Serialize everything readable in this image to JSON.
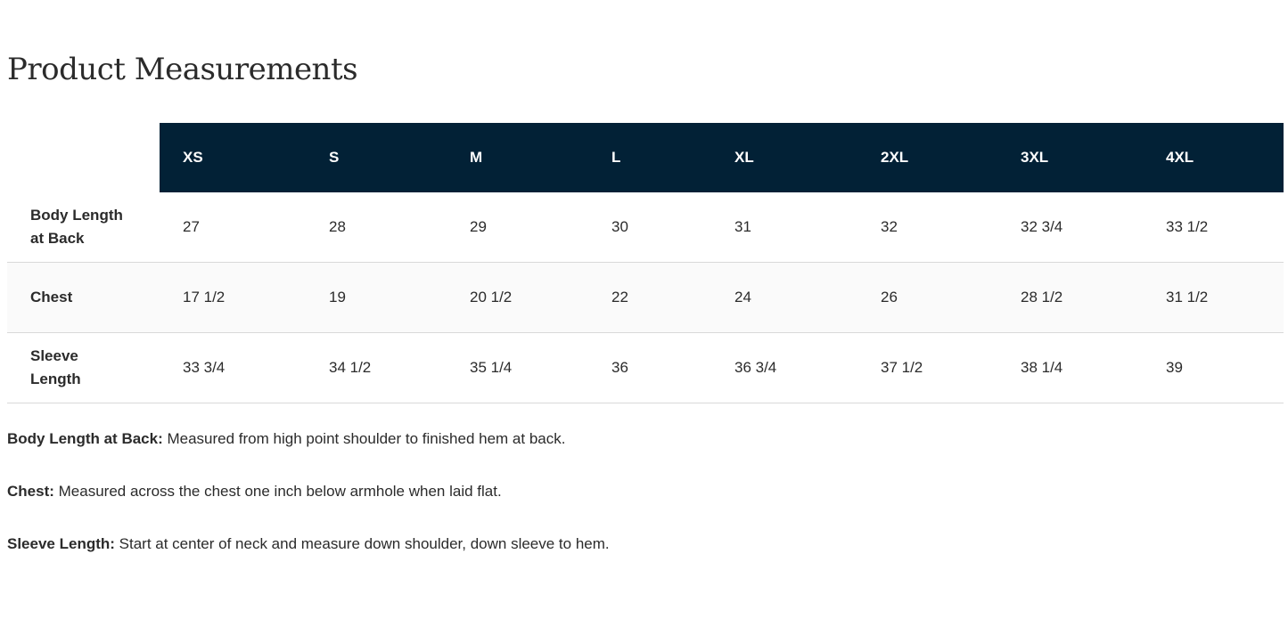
{
  "title": "Product Measurements",
  "sizes": [
    "XS",
    "S",
    "M",
    "L",
    "XL",
    "2XL",
    "3XL",
    "4XL"
  ],
  "rows": [
    {
      "label": "Body Length at Back",
      "values": [
        "27",
        "28",
        "29",
        "30",
        "31",
        "32",
        "32 3/4",
        "33 1/2"
      ]
    },
    {
      "label": "Chest",
      "values": [
        "17 1/2",
        "19",
        "20 1/2",
        "22",
        "24",
        "26",
        "28 1/2",
        "31 1/2"
      ]
    },
    {
      "label": "Sleeve Length",
      "values": [
        "33 3/4",
        "34 1/2",
        "35 1/4",
        "36",
        "36 3/4",
        "37 1/2",
        "38 1/4",
        "39"
      ]
    }
  ],
  "notes": [
    {
      "term": "Body Length at Back:",
      "text": " Measured from high point shoulder to finished hem at back."
    },
    {
      "term": "Chest:",
      "text": " Measured across the chest one inch below armhole when laid flat."
    },
    {
      "term": "Sleeve Length:",
      "text": " Start at center of neck and measure down shoulder, down sleeve to hem."
    }
  ],
  "colors": {
    "header_bg": "#022136"
  }
}
